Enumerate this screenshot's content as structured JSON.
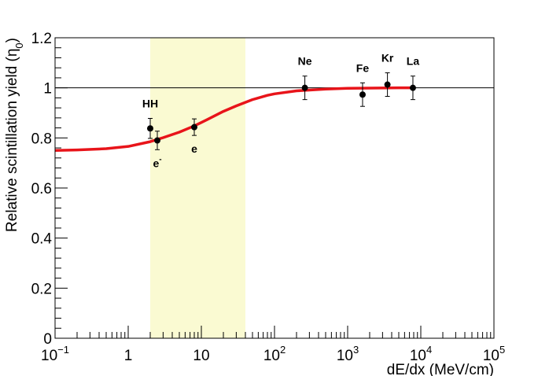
{
  "chart_data": {
    "type": "scatter",
    "xlabel": "dE/dx (MeV/cm)",
    "ylabel_main": "Relative scintillation yield (η",
    "ylabel_sub": "0",
    "ylabel_close": ")",
    "x_scale": "log",
    "xlim": [
      0.1,
      100000
    ],
    "ylim": [
      0,
      1.2
    ],
    "x_ticks": [
      {
        "value": 0.1,
        "base": "10",
        "exp": "−1"
      },
      {
        "value": 1,
        "base": "1",
        "exp": ""
      },
      {
        "value": 10,
        "base": "10",
        "exp": ""
      },
      {
        "value": 100,
        "base": "10",
        "exp": "2"
      },
      {
        "value": 1000,
        "base": "10",
        "exp": "3"
      },
      {
        "value": 10000,
        "base": "10",
        "exp": "4"
      },
      {
        "value": 100000,
        "base": "10",
        "exp": "5"
      }
    ],
    "y_ticks": [
      {
        "value": 0,
        "label": "0"
      },
      {
        "value": 0.2,
        "label": "0.2"
      },
      {
        "value": 0.4,
        "label": "0.4"
      },
      {
        "value": 0.6,
        "label": "0.6"
      },
      {
        "value": 0.8,
        "label": "0.8"
      },
      {
        "value": 1.0,
        "label": "1"
      },
      {
        "value": 1.2,
        "label": "1.2"
      }
    ],
    "reference_line_y": 1.0,
    "shaded_band": {
      "x0": 2,
      "x1": 40,
      "color": "#fafad2"
    },
    "points": [
      {
        "x": 2.0,
        "y": 0.838,
        "err": 0.04,
        "label": "HH",
        "label_sup": "",
        "label_pos": "above"
      },
      {
        "x": 2.5,
        "y": 0.79,
        "err": 0.037,
        "label": "e",
        "label_sup": "-",
        "label_pos": "below"
      },
      {
        "x": 8.0,
        "y": 0.843,
        "err": 0.033,
        "label": "e",
        "label_sup": "",
        "label_pos": "below"
      },
      {
        "x": 260,
        "y": 1.0,
        "err": 0.047,
        "label": "Ne",
        "label_sup": "",
        "label_pos": "above"
      },
      {
        "x": 1600,
        "y": 0.973,
        "err": 0.047,
        "label": "Fe",
        "label_sup": "",
        "label_pos": "above"
      },
      {
        "x": 3500,
        "y": 1.013,
        "err": 0.047,
        "label": "Kr",
        "label_sup": "",
        "label_pos": "above"
      },
      {
        "x": 7800,
        "y": 1.0,
        "err": 0.047,
        "label": "La",
        "label_sup": "",
        "label_pos": "above"
      }
    ],
    "fit_curve": {
      "color": "#e8141a",
      "x": [
        0.1,
        0.2,
        0.5,
        1,
        2,
        3,
        5,
        8,
        12,
        20,
        30,
        50,
        80,
        100,
        200,
        500,
        1000,
        2000,
        5000,
        8000
      ],
      "y": [
        0.75,
        0.752,
        0.757,
        0.766,
        0.785,
        0.801,
        0.823,
        0.848,
        0.873,
        0.906,
        0.928,
        0.953,
        0.97,
        0.976,
        0.988,
        0.995,
        0.998,
        0.999,
        1.0,
        1.0
      ]
    },
    "colors": {
      "points": "#000000",
      "band": "#fafad2",
      "curve": "#e8141a",
      "frame": "#000000"
    }
  }
}
